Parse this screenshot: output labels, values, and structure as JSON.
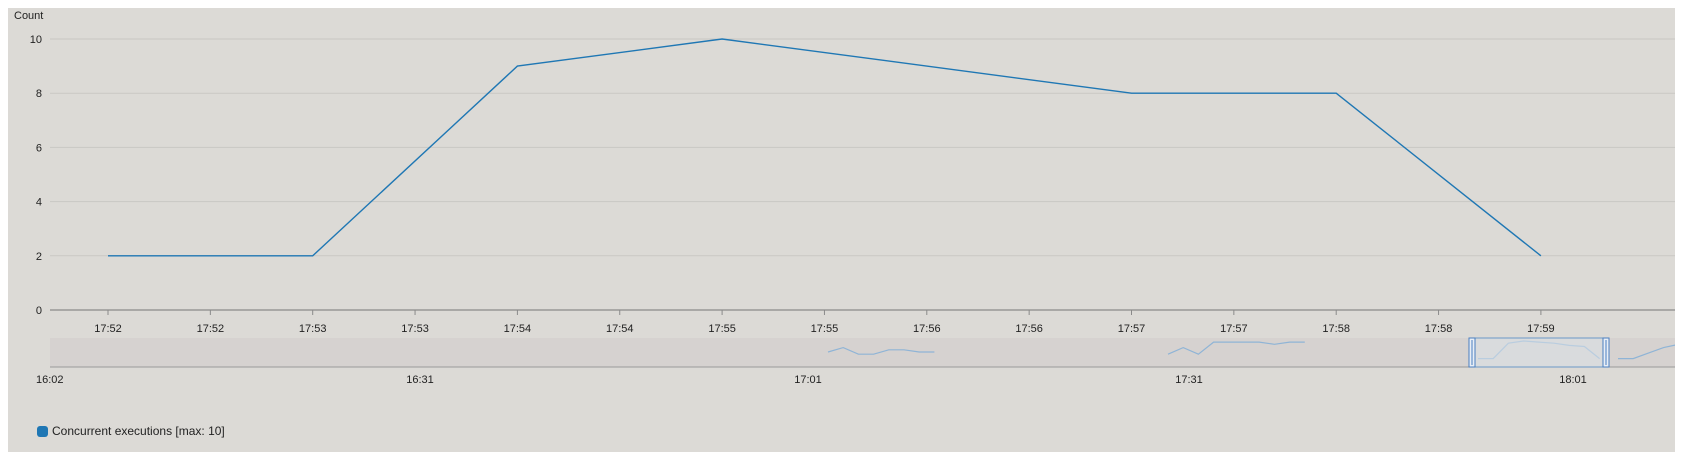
{
  "chart_data": {
    "type": "line",
    "ylabel": "Count",
    "ylim": [
      0,
      10
    ],
    "yticks": [
      0,
      2,
      4,
      6,
      8,
      10
    ],
    "grid": true,
    "categories": [
      "17:52",
      "17:52",
      "17:53",
      "17:53",
      "17:54",
      "17:54",
      "17:55",
      "17:55",
      "17:56",
      "17:56",
      "17:57",
      "17:57",
      "17:58",
      "17:58",
      "17:59"
    ],
    "series": [
      {
        "name": "Concurrent executions [max: 10]",
        "color": "#1f77b4",
        "x": [
          0,
          2,
          4,
          6,
          10,
          12,
          14
        ],
        "values": [
          2,
          2,
          9,
          10,
          8,
          8,
          2
        ]
      }
    ],
    "legend_position": "bottom-left",
    "navigator": {
      "labels": [
        "16:02",
        "16:31",
        "17:01",
        "17:31",
        "18:01"
      ],
      "selection": "17:52–17:59",
      "series_color": "#8fb4d6",
      "segments": [
        [
          [
            0,
            0.5
          ],
          [
            2,
            0.3
          ],
          [
            4,
            0.6
          ],
          [
            6,
            0.6
          ],
          [
            8,
            0.4
          ],
          [
            10,
            0.4
          ],
          [
            12,
            0.5
          ],
          [
            14,
            0.5
          ]
        ],
        [
          [
            0,
            0.6
          ],
          [
            2,
            0.3
          ],
          [
            4,
            0.6
          ],
          [
            6,
            0.05
          ],
          [
            8,
            0.05
          ],
          [
            10,
            0.05
          ],
          [
            12,
            0.05
          ],
          [
            14,
            0.15
          ],
          [
            16,
            0.05
          ],
          [
            18,
            0.05
          ]
        ],
        [
          [
            0,
            0.8
          ],
          [
            2,
            0.8
          ],
          [
            4,
            0.1
          ],
          [
            6,
            0.0
          ],
          [
            8,
            0.05
          ],
          [
            10,
            0.1
          ],
          [
            12,
            0.2
          ],
          [
            14,
            0.25
          ],
          [
            16,
            0.8
          ]
        ],
        [
          [
            0,
            0.8
          ],
          [
            2,
            0.8
          ],
          [
            4,
            0.55
          ],
          [
            6,
            0.3
          ],
          [
            8,
            0.15
          ],
          [
            10,
            0.25
          ]
        ]
      ]
    }
  }
}
